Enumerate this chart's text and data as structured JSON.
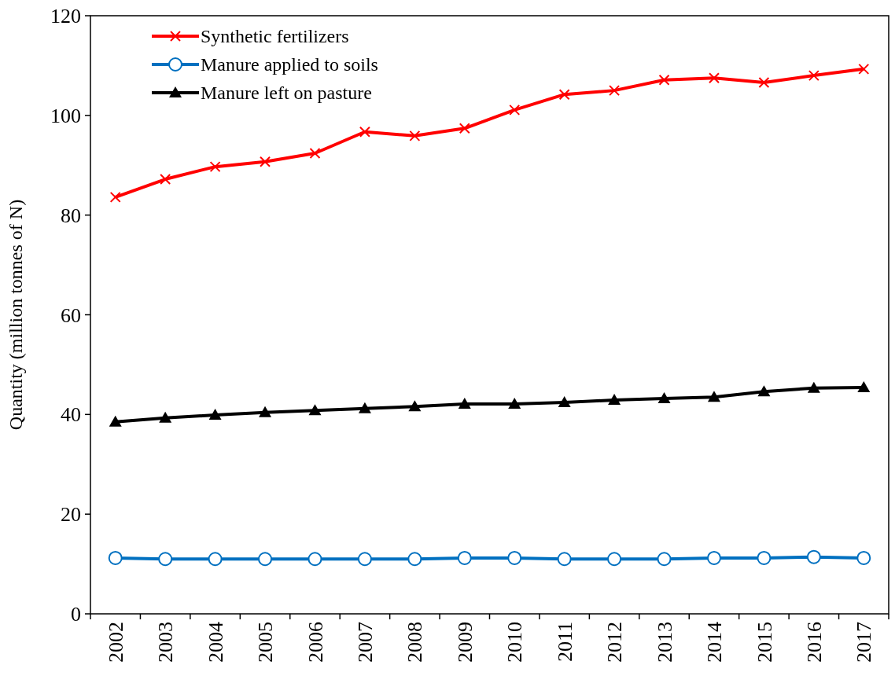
{
  "chart_data": {
    "type": "line",
    "ylabel": "Quantity (million tonnes of N)",
    "categories": [
      "2002",
      "2003",
      "2004",
      "2005",
      "2006",
      "2007",
      "2008",
      "2009",
      "2010",
      "2011",
      "2012",
      "2013",
      "2014",
      "2015",
      "2016",
      "2017"
    ],
    "series": [
      {
        "name": "Synthetic fertilizers",
        "color": "#ff0000",
        "marker": "cross",
        "values": [
          83.6,
          87.2,
          89.7,
          90.7,
          92.4,
          96.7,
          95.9,
          97.4,
          101.1,
          104.2,
          105.0,
          107.1,
          107.5,
          106.6,
          108.0,
          109.3
        ]
      },
      {
        "name": "Manure applied to soils",
        "color": "#0070c0",
        "marker": "circle",
        "values": [
          11.2,
          11.0,
          11.0,
          11.0,
          11.0,
          11.0,
          11.0,
          11.2,
          11.2,
          11.0,
          11.0,
          11.0,
          11.2,
          11.2,
          11.4,
          11.2
        ]
      },
      {
        "name": "Manure left on pasture",
        "color": "#000000",
        "marker": "triangle",
        "values": [
          38.5,
          39.3,
          39.9,
          40.4,
          40.8,
          41.2,
          41.6,
          42.1,
          42.1,
          42.4,
          42.9,
          43.2,
          43.5,
          44.6,
          45.3,
          45.4
        ]
      }
    ],
    "ylim": [
      0,
      120
    ],
    "yticks": [
      0,
      20,
      40,
      60,
      80,
      100,
      120
    ],
    "legend": "top left",
    "grid": false,
    "line_style": "solid"
  }
}
